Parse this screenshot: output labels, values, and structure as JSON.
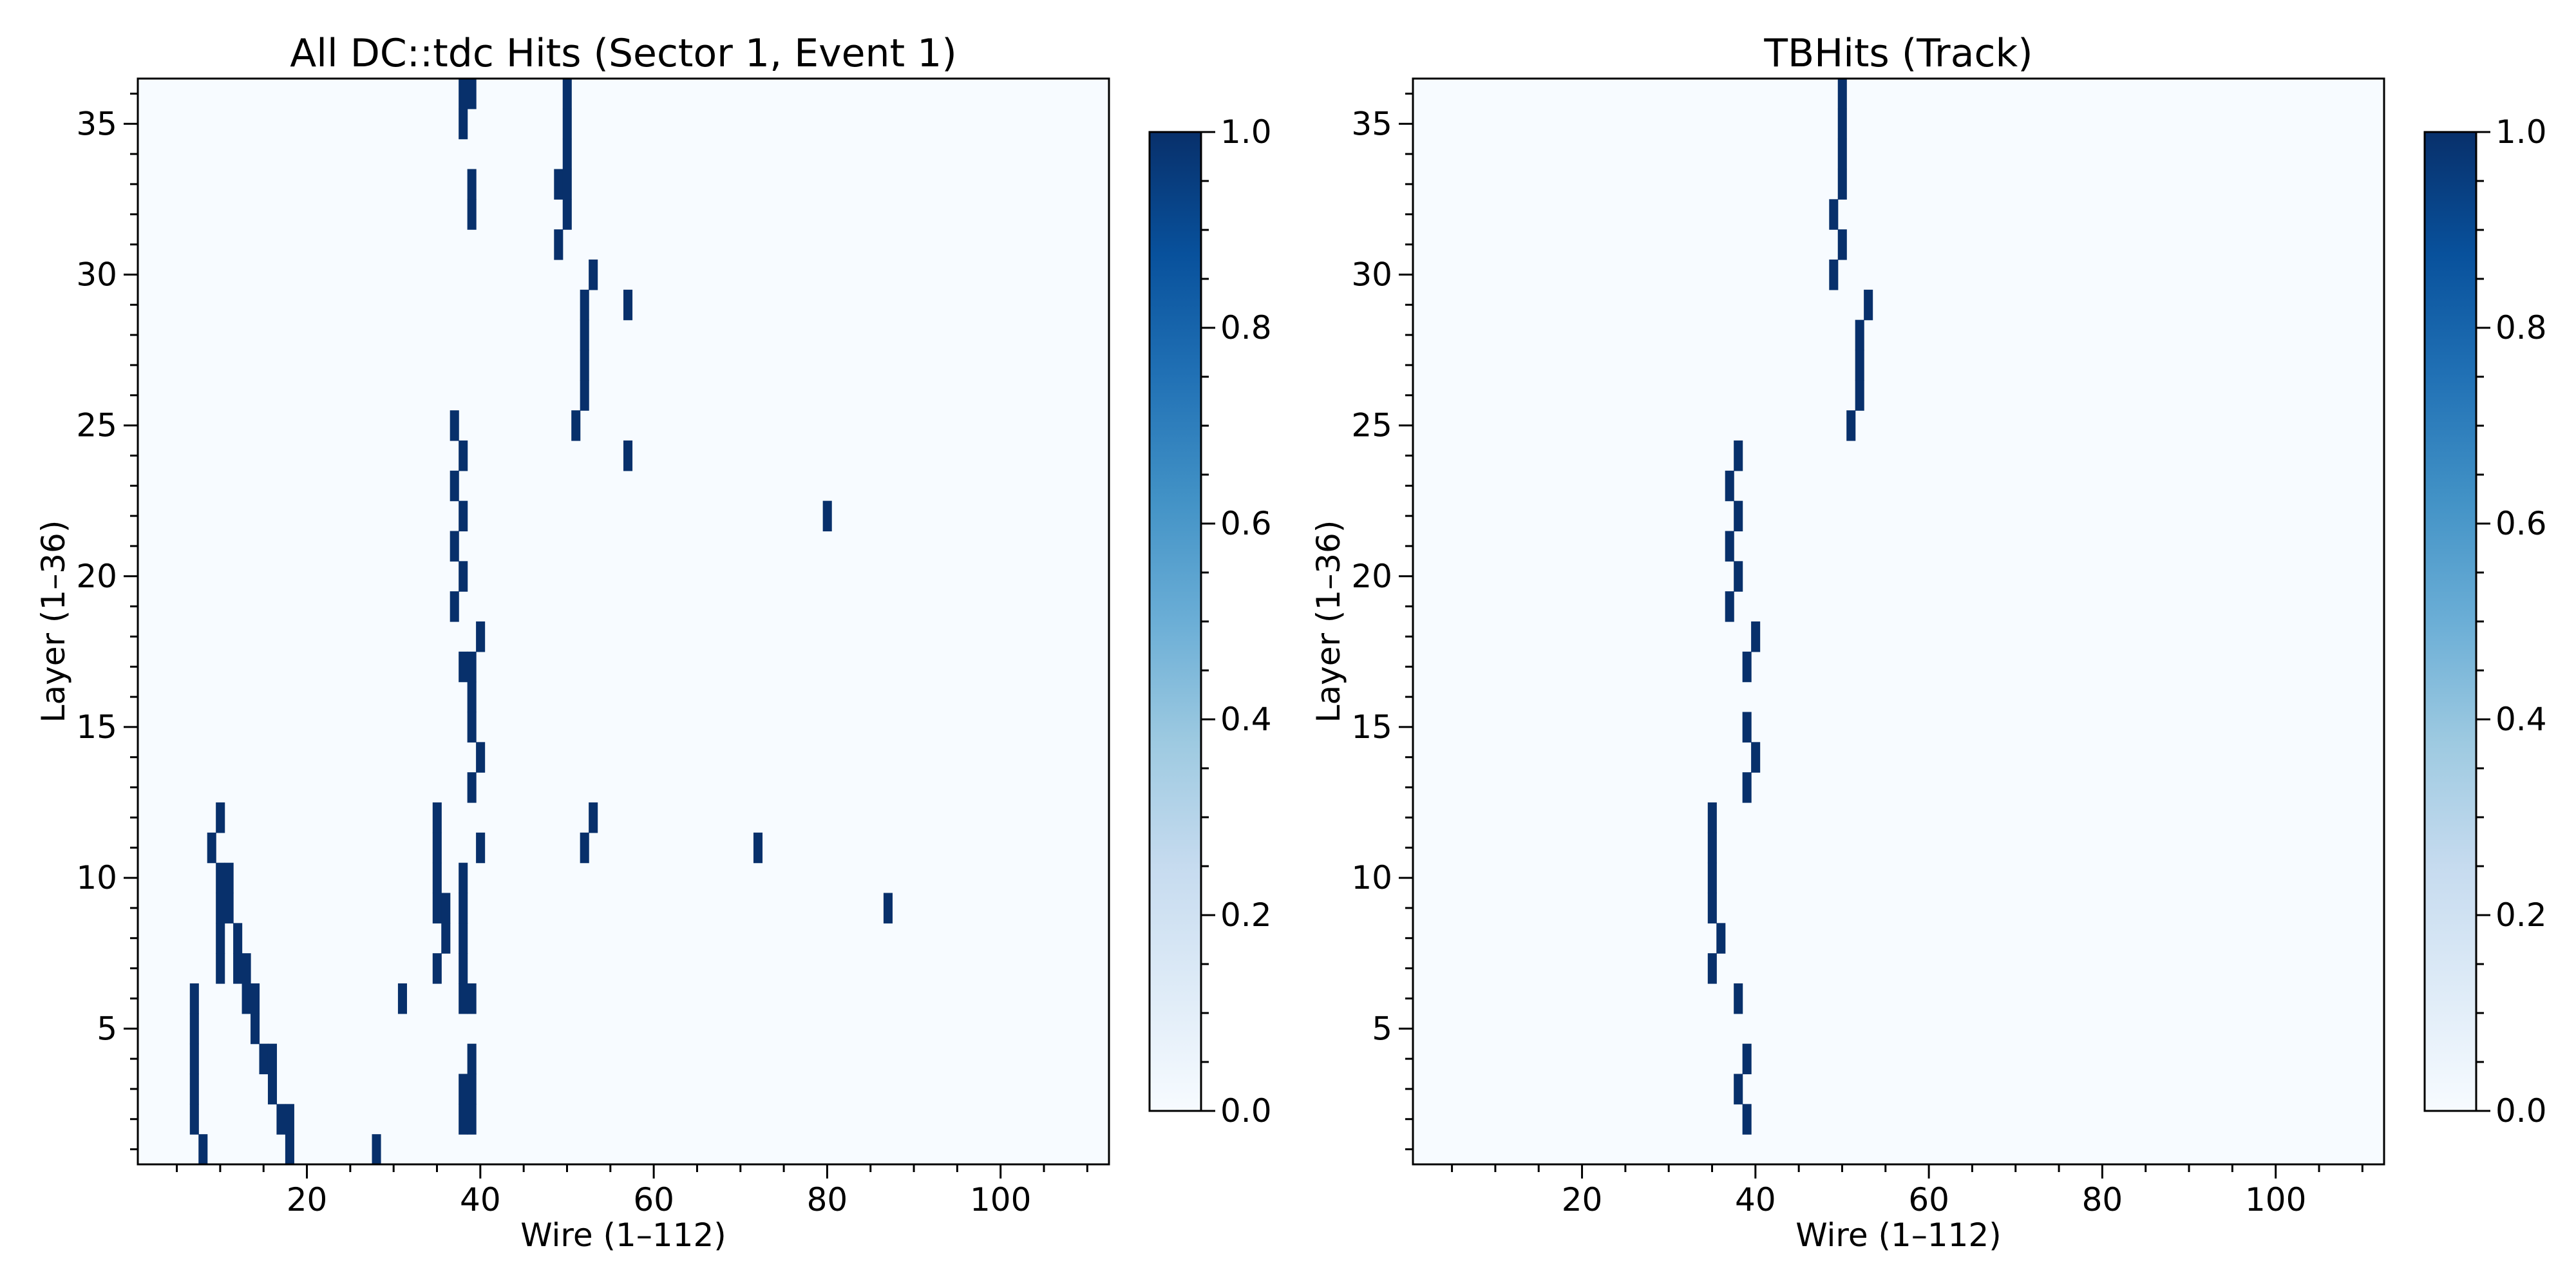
{
  "colors": {
    "background_low": "#f7fbff",
    "hit_high": "#08306b",
    "colormap": [
      "#f7fbff",
      "#deebf7",
      "#c6dbef",
      "#9ecae1",
      "#6baed6",
      "#4292c6",
      "#2171b5",
      "#08519c",
      "#08306b"
    ]
  },
  "chart_data": [
    {
      "type": "heatmap",
      "title": "All DC::tdc Hits (Sector 1, Event 1)",
      "xlabel": "Wire (1–112)",
      "ylabel": "Layer (1–36)",
      "xlim": [
        1,
        112
      ],
      "ylim": [
        1,
        36
      ],
      "x_ticks": [
        20,
        40,
        60,
        80,
        100
      ],
      "x_tick_labels": [
        "20",
        "40",
        "60",
        "80",
        "100"
      ],
      "y_ticks": [
        5,
        10,
        15,
        20,
        25,
        30,
        35
      ],
      "y_tick_labels": [
        "5",
        "10",
        "15",
        "20",
        "25",
        "30",
        "35"
      ],
      "colorbar": {
        "min": 0.0,
        "max": 1.0,
        "ticks": [
          "0.0",
          "0.2",
          "0.4",
          "0.6",
          "0.8",
          "1.0"
        ]
      },
      "hits": [
        [
          38,
          36
        ],
        [
          39,
          36
        ],
        [
          50,
          36
        ],
        [
          38,
          35
        ],
        [
          50,
          35
        ],
        [
          50,
          34
        ],
        [
          39,
          33
        ],
        [
          49,
          33
        ],
        [
          50,
          33
        ],
        [
          39,
          32
        ],
        [
          50,
          32
        ],
        [
          49,
          31
        ],
        [
          53,
          30
        ],
        [
          52,
          29
        ],
        [
          57,
          29
        ],
        [
          52,
          28
        ],
        [
          52,
          27
        ],
        [
          52,
          26
        ],
        [
          37,
          25
        ],
        [
          51,
          25
        ],
        [
          38,
          24
        ],
        [
          57,
          24
        ],
        [
          37,
          23
        ],
        [
          38,
          22
        ],
        [
          80,
          22
        ],
        [
          37,
          21
        ],
        [
          38,
          20
        ],
        [
          37,
          19
        ],
        [
          40,
          18
        ],
        [
          38,
          17
        ],
        [
          39,
          17
        ],
        [
          39,
          16
        ],
        [
          39,
          15
        ],
        [
          40,
          14
        ],
        [
          39,
          13
        ],
        [
          10,
          12
        ],
        [
          35,
          12
        ],
        [
          53,
          12
        ],
        [
          9,
          11
        ],
        [
          35,
          11
        ],
        [
          40,
          11
        ],
        [
          52,
          11
        ],
        [
          72,
          11
        ],
        [
          10,
          10
        ],
        [
          11,
          10
        ],
        [
          35,
          10
        ],
        [
          38,
          10
        ],
        [
          10,
          9
        ],
        [
          11,
          9
        ],
        [
          35,
          9
        ],
        [
          36,
          9
        ],
        [
          38,
          9
        ],
        [
          87,
          9
        ],
        [
          10,
          8
        ],
        [
          12,
          8
        ],
        [
          36,
          8
        ],
        [
          38,
          8
        ],
        [
          10,
          7
        ],
        [
          12,
          7
        ],
        [
          13,
          7
        ],
        [
          35,
          7
        ],
        [
          38,
          7
        ],
        [
          7,
          6
        ],
        [
          13,
          6
        ],
        [
          14,
          6
        ],
        [
          31,
          6
        ],
        [
          38,
          6
        ],
        [
          39,
          6
        ],
        [
          7,
          5
        ],
        [
          14,
          5
        ],
        [
          7,
          4
        ],
        [
          15,
          4
        ],
        [
          16,
          4
        ],
        [
          39,
          4
        ],
        [
          7,
          3
        ],
        [
          16,
          3
        ],
        [
          38,
          3
        ],
        [
          39,
          3
        ],
        [
          7,
          2
        ],
        [
          17,
          2
        ],
        [
          18,
          2
        ],
        [
          38,
          2
        ],
        [
          39,
          2
        ],
        [
          8,
          1
        ],
        [
          18,
          1
        ],
        [
          28,
          1
        ]
      ]
    },
    {
      "type": "heatmap",
      "title": "TBHits (Track)",
      "xlabel": "Wire (1–112)",
      "ylabel": "Layer (1–36)",
      "xlim": [
        1,
        112
      ],
      "ylim": [
        1,
        36
      ],
      "x_ticks": [
        20,
        40,
        60,
        80,
        100
      ],
      "x_tick_labels": [
        "20",
        "40",
        "60",
        "80",
        "100"
      ],
      "y_ticks": [
        5,
        10,
        15,
        20,
        25,
        30,
        35
      ],
      "y_tick_labels": [
        "5",
        "10",
        "15",
        "20",
        "25",
        "30",
        "35"
      ],
      "colorbar": {
        "min": 0.0,
        "max": 1.0,
        "ticks": [
          "0.0",
          "0.2",
          "0.4",
          "0.6",
          "0.8",
          "1.0"
        ]
      },
      "hits": [
        [
          50,
          36
        ],
        [
          50,
          35
        ],
        [
          50,
          34
        ],
        [
          50,
          33
        ],
        [
          49,
          32
        ],
        [
          50,
          31
        ],
        [
          49,
          30
        ],
        [
          53,
          29
        ],
        [
          52,
          28
        ],
        [
          52,
          27
        ],
        [
          52,
          26
        ],
        [
          51,
          25
        ],
        [
          38,
          24
        ],
        [
          37,
          23
        ],
        [
          38,
          22
        ],
        [
          37,
          21
        ],
        [
          38,
          20
        ],
        [
          37,
          19
        ],
        [
          40,
          18
        ],
        [
          39,
          17
        ],
        [
          39,
          15
        ],
        [
          40,
          14
        ],
        [
          39,
          13
        ],
        [
          35,
          12
        ],
        [
          35,
          11
        ],
        [
          35,
          10
        ],
        [
          35,
          9
        ],
        [
          36,
          8
        ],
        [
          35,
          7
        ],
        [
          38,
          6
        ],
        [
          39,
          4
        ],
        [
          38,
          3
        ],
        [
          39,
          2
        ]
      ]
    }
  ]
}
